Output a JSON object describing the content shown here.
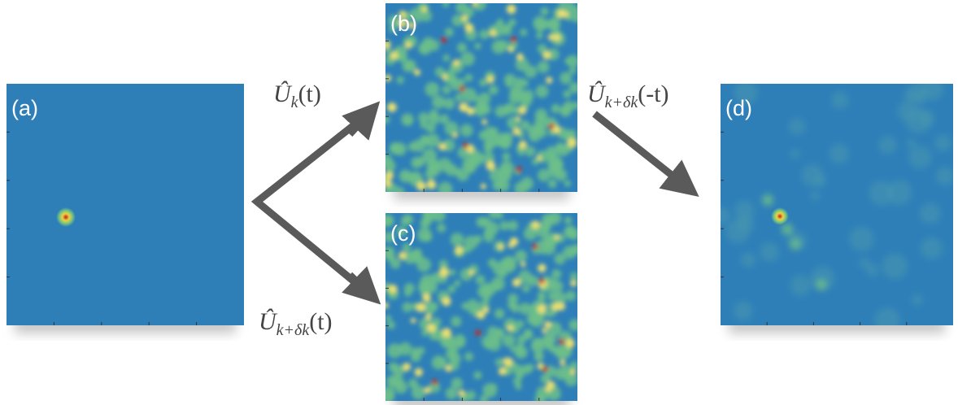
{
  "panels": [
    {
      "label": "(a)"
    },
    {
      "label": "(b)"
    },
    {
      "label": "(c)"
    },
    {
      "label": "(d)"
    }
  ],
  "operators": [
    {
      "symbol": "Û",
      "subscript": "k",
      "argument": "(t)"
    },
    {
      "symbol": "Û",
      "subscript": "k+δk",
      "argument": "(t)"
    },
    {
      "symbol": "Û",
      "subscript": "k+δk",
      "argument": "(-t)"
    }
  ]
}
